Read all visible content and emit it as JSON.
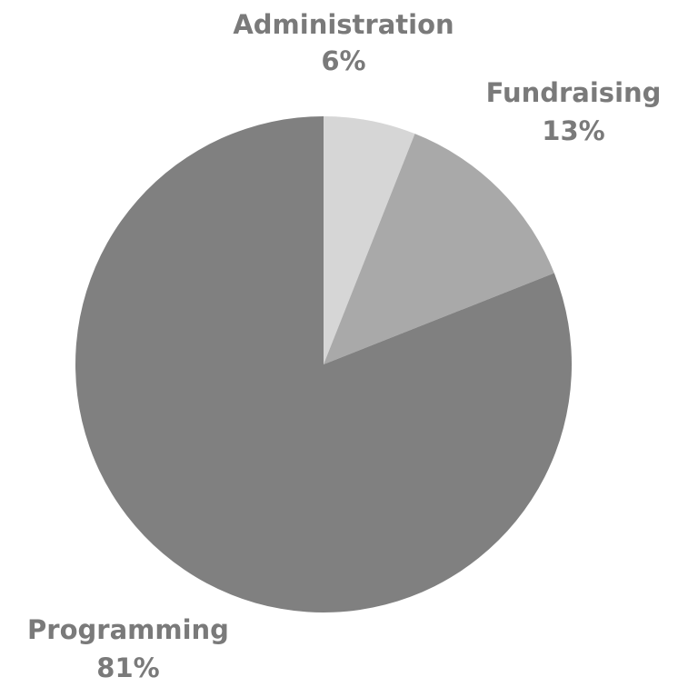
{
  "chart_data": {
    "type": "pie",
    "title": "",
    "start_angle_deg": 0,
    "direction": "clockwise",
    "slices": [
      {
        "label": "Administration",
        "value": 6,
        "display": "6%",
        "color": "#d6d6d6"
      },
      {
        "label": "Fundraising",
        "value": 13,
        "display": "13%",
        "color": "#a9a9a9"
      },
      {
        "label": "Programming",
        "value": 81,
        "display": "81%",
        "color": "#808080"
      }
    ],
    "label_color": "#7a7a7a",
    "background": "#ffffff"
  }
}
